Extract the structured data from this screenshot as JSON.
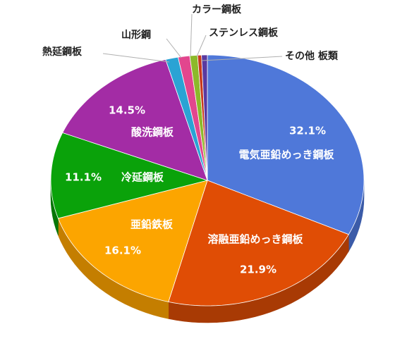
{
  "chart_data": {
    "type": "pie",
    "style": "3d-tilted",
    "categories": [
      "電気亜鉛めっき鋼板",
      "溶融亜鉛めっき鋼板",
      "亜鉛鉄板",
      "冷延鋼板",
      "酸洗鋼板",
      "熱延鋼板",
      "山形鋼",
      "カラー鋼板",
      "ステンレス鋼板",
      "その他 板類"
    ],
    "values": [
      32.1,
      21.9,
      16.1,
      11.1,
      14.5,
      1.3,
      1.2,
      0.8,
      0.4,
      0.6
    ],
    "value_labels": [
      "32.1%",
      "21.9%",
      "16.1%",
      "11.1%",
      "14.5%",
      "",
      "",
      "",
      "",
      ""
    ],
    "colors": [
      "#4f78d9",
      "#e04d05",
      "#fca500",
      "#0aa20a",
      "#a32ca5",
      "#2aa3d4",
      "#e2468e",
      "#8cb92a",
      "#c83a1c",
      "#5a3aa0"
    ],
    "side_colors": [
      "#3b5ba8",
      "#a83a04",
      "#c47e00",
      "#077607",
      "#78207a",
      "#1f7ba0",
      "#aa346a",
      "#688b1f",
      "#962b15",
      "#432b78"
    ],
    "start_angle_deg": 0,
    "direction": "clockwise",
    "legend": "none"
  }
}
